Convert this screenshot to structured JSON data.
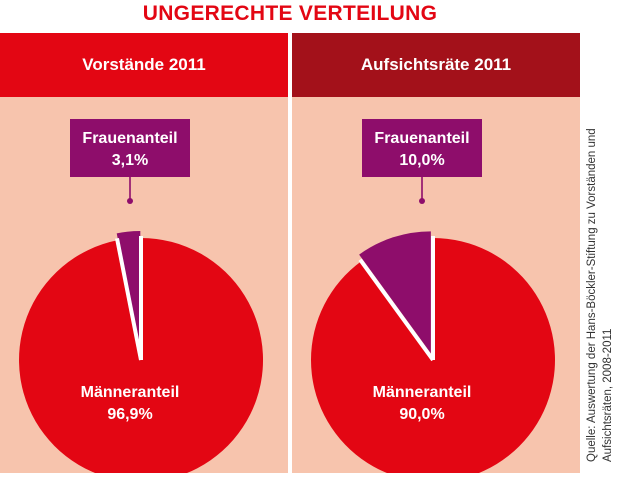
{
  "title": "UNGERECHTE VERTEILUNG",
  "source": "Quelle: Auswertung der Hans-Böckler-Stiftung zu Vorständen und Aufsichtsräten, 2008-2011",
  "colors": {
    "title": "#e30613",
    "panel_bg": "#f7c4ad",
    "header_left": "#e30613",
    "header_right": "#a3111a",
    "men": "#e30613",
    "women": "#8e0d6b"
  },
  "chart_data": [
    {
      "type": "pie",
      "title": "Vorstände 2011",
      "labels": [
        "Frauenanteil",
        "Männeranteil"
      ],
      "values": [
        3.1,
        96.9
      ],
      "value_labels": [
        "3,1%",
        "96,9%"
      ]
    },
    {
      "type": "pie",
      "title": "Aufsichtsräte 2011",
      "labels": [
        "Frauenanteil",
        "Männeranteil"
      ],
      "values": [
        10.0,
        90.0
      ],
      "value_labels": [
        "10,0%",
        "90,0%"
      ]
    }
  ]
}
